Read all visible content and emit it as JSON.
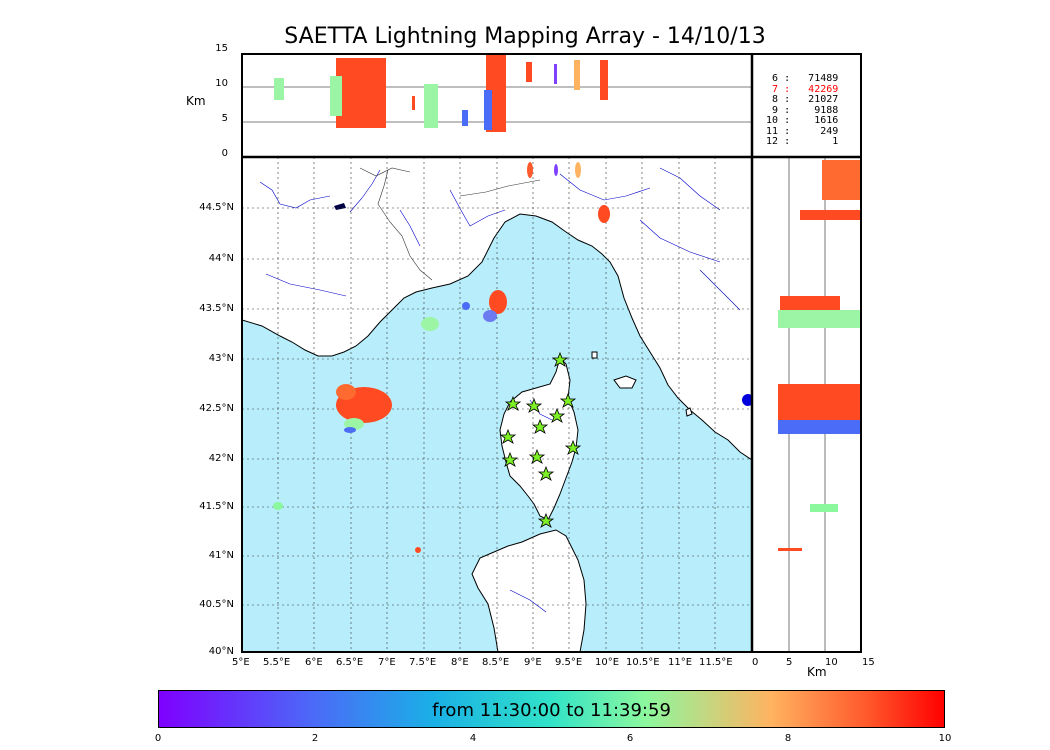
{
  "title": "SAETTA Lightning Mapping Array - 14/10/13",
  "top_panel": {
    "ylabel": "Km",
    "yticks": [
      "15",
      "10",
      "5",
      "0"
    ]
  },
  "right_panel": {
    "xlabel": "Km",
    "xticks": [
      "0",
      "5",
      "10",
      "15"
    ]
  },
  "map": {
    "lon_ticks": [
      "5°E",
      "5.5°E",
      "6°E",
      "6.5°E",
      "7°E",
      "7.5°E",
      "8°E",
      "8.5°E",
      "9°E",
      "9.5°E",
      "10°E",
      "10.5°E",
      "11°E",
      "11.5°E"
    ],
    "lat_ticks": [
      "44.5°N",
      "44°N",
      "43.5°N",
      "43°N",
      "42.5°N",
      "42°N",
      "41.5°N",
      "41°N",
      "40.5°N",
      "40°N"
    ],
    "sea_color": "#b8eefc",
    "land_color": "#ffffff"
  },
  "stats": [
    {
      "n": "6",
      "count": "71489",
      "highlight": false
    },
    {
      "n": "7",
      "count": "42269",
      "highlight": true
    },
    {
      "n": "8",
      "count": "21027",
      "highlight": false
    },
    {
      "n": "9",
      "count": "9188",
      "highlight": false
    },
    {
      "n": "10",
      "count": "1616",
      "highlight": false
    },
    {
      "n": "11",
      "count": "249",
      "highlight": false
    },
    {
      "n": "12",
      "count": "1",
      "highlight": false
    }
  ],
  "colorbar": {
    "label": "from 11:30:00 to 11:39:59",
    "ticks": [
      "0",
      "2",
      "4",
      "6",
      "8",
      "10"
    ]
  }
}
